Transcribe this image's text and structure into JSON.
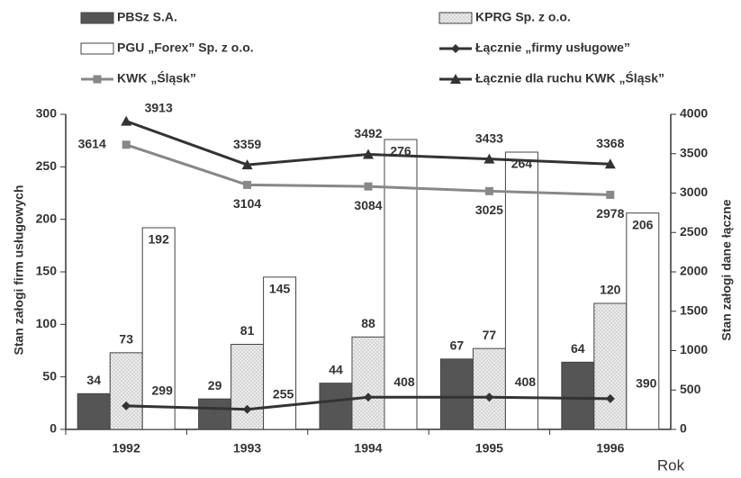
{
  "chart_data": {
    "type": "bar",
    "categories": [
      "1992",
      "1993",
      "1994",
      "1995",
      "1996"
    ],
    "ylabel": "Stan załogi firm usługowych",
    "y2label": "Stan załogi dane łączne",
    "xlabel": "Rok",
    "ylim": [
      0,
      300
    ],
    "yticks": [
      0,
      50,
      100,
      150,
      200,
      250,
      300
    ],
    "y2lim": [
      0,
      4000
    ],
    "y2ticks": [
      0,
      500,
      1000,
      1500,
      2000,
      2500,
      3000,
      3500,
      4000
    ],
    "series": [
      {
        "name": "PBSz S.A.",
        "type": "bar",
        "color": "#555555",
        "values": [
          34,
          29,
          44,
          67,
          64
        ]
      },
      {
        "name": "KPRG Sp. z o.o.",
        "type": "bar",
        "color": "#e6e6e6",
        "values": [
          73,
          81,
          88,
          77,
          120
        ]
      },
      {
        "name": "PGU „Forex” Sp. z o.o.",
        "type": "bar",
        "color": "#ffffff",
        "values": [
          192,
          145,
          276,
          264,
          206
        ]
      },
      {
        "name": "Łącznie „firmy usługowe”",
        "type": "line",
        "axis": "y2",
        "marker": "diamond",
        "color": "#333333",
        "values": [
          299,
          255,
          408,
          408,
          390
        ]
      },
      {
        "name": "KWK „Śląsk”",
        "type": "line",
        "axis": "y2",
        "marker": "square",
        "color": "#888888",
        "values": [
          3614,
          3104,
          3084,
          3025,
          2978
        ]
      },
      {
        "name": "Łącznie dla ruchu KWK „Śląsk”",
        "type": "line",
        "axis": "y2",
        "marker": "triangle",
        "color": "#333333",
        "values": [
          3913,
          3359,
          3492,
          3433,
          3368
        ]
      }
    ]
  }
}
